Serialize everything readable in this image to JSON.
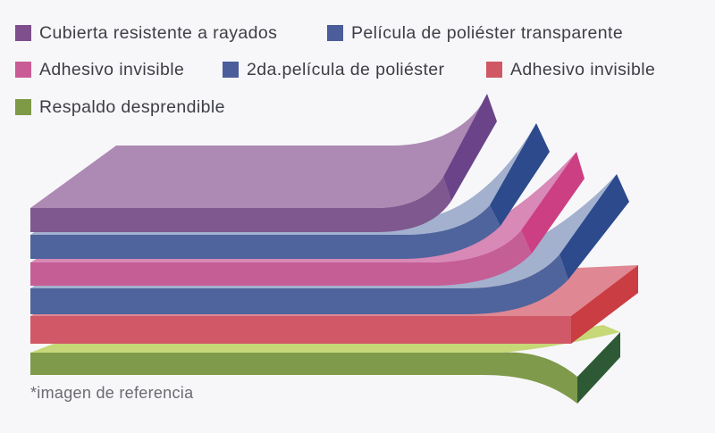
{
  "legend": [
    {
      "label": "Cubierta resistente a rayados",
      "color": "#7e4f8c"
    },
    {
      "label": "Película de poliéster transparente",
      "color": "#4b5d9a"
    },
    {
      "label": "Adhesivo invisible",
      "color": "#c95c95"
    },
    {
      "label": "2da.película de poliéster",
      "color": "#4b5d9a"
    },
    {
      "label": "Adhesivo invisible",
      "color": "#d05865"
    },
    {
      "label": "Respaldo desprendible",
      "color": "#7e9a46"
    }
  ],
  "footnote": "*imagen de referencia",
  "layers": [
    {
      "name": "cubierta",
      "top": "#ad8ab3",
      "front": "#7e588f",
      "side": "#6a4388"
    },
    {
      "name": "pelicula-1",
      "top": "#a3b1cf",
      "front": "#4f649c",
      "side": "#2c4a8c"
    },
    {
      "name": "adhesivo-1",
      "top": "#d889b6",
      "front": "#c65e96",
      "side": "#cc3f83"
    },
    {
      "name": "pelicula-2",
      "top": "#a3b1cf",
      "front": "#4f649c",
      "side": "#2c4a8c"
    },
    {
      "name": "adhesivo-2",
      "top": "#df8893",
      "front": "#d15866",
      "side": "#ca3d42"
    },
    {
      "name": "respaldo",
      "top": "#c6d877",
      "front": "#7f9a4a",
      "side": "#2d5a34"
    }
  ]
}
